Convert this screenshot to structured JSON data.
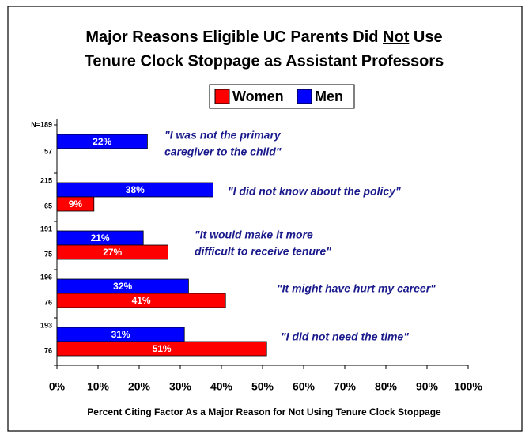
{
  "chart_data": {
    "type": "bar",
    "orientation": "horizontal",
    "title_parts": [
      "Major Reasons Eligible UC Parents Did",
      "Not",
      "Use",
      "Tenure Clock Stoppage as Assistant Professors"
    ],
    "categories": [
      [
        "\"I was not the primary",
        "caregiver to the child\""
      ],
      [
        "\"I did not know about the policy\""
      ],
      [
        "\"It would make it more",
        "difficult to receive tenure\""
      ],
      [
        "\"It might have hurt my career\""
      ],
      [
        "\"I did not need the time\""
      ]
    ],
    "series": [
      {
        "name": "Men",
        "color": "#0000ff",
        "values": [
          22,
          38,
          21,
          32,
          31
        ],
        "value_labels": [
          "22%",
          "38%",
          "21%",
          "32%",
          "31%"
        ],
        "sample_sizes": [
          {
            "value": 189,
            "label": "N=189"
          },
          215,
          191,
          196,
          193
        ]
      },
      {
        "name": "Women",
        "color": "#ff0000",
        "values": [
          null,
          9,
          27,
          41,
          51
        ],
        "value_labels": [
          null,
          "9%",
          "27%",
          "41%",
          "51%"
        ],
        "sample_sizes": [
          57,
          65,
          75,
          76,
          76
        ]
      }
    ],
    "legend_order": [
      1,
      0
    ],
    "xlim": [
      0,
      100
    ],
    "xticks": [
      {
        "value": 0,
        "label": "0%"
      },
      {
        "value": 10,
        "label": "10%"
      },
      {
        "value": 20,
        "label": "20%"
      },
      {
        "value": 30,
        "label": "30%"
      },
      {
        "value": 40,
        "label": "40%"
      },
      {
        "value": 50,
        "label": "50%"
      },
      {
        "value": 60,
        "label": "60%"
      },
      {
        "value": 70,
        "label": "70%"
      },
      {
        "value": 80,
        "label": "80%"
      },
      {
        "value": 90,
        "label": "90%"
      },
      {
        "value": 100,
        "label": "100%"
      }
    ],
    "xlabel": "Percent Citing Factor As a Major Reason for Not Using Tenure Clock Stoppage",
    "legend": "top",
    "grid": false
  }
}
